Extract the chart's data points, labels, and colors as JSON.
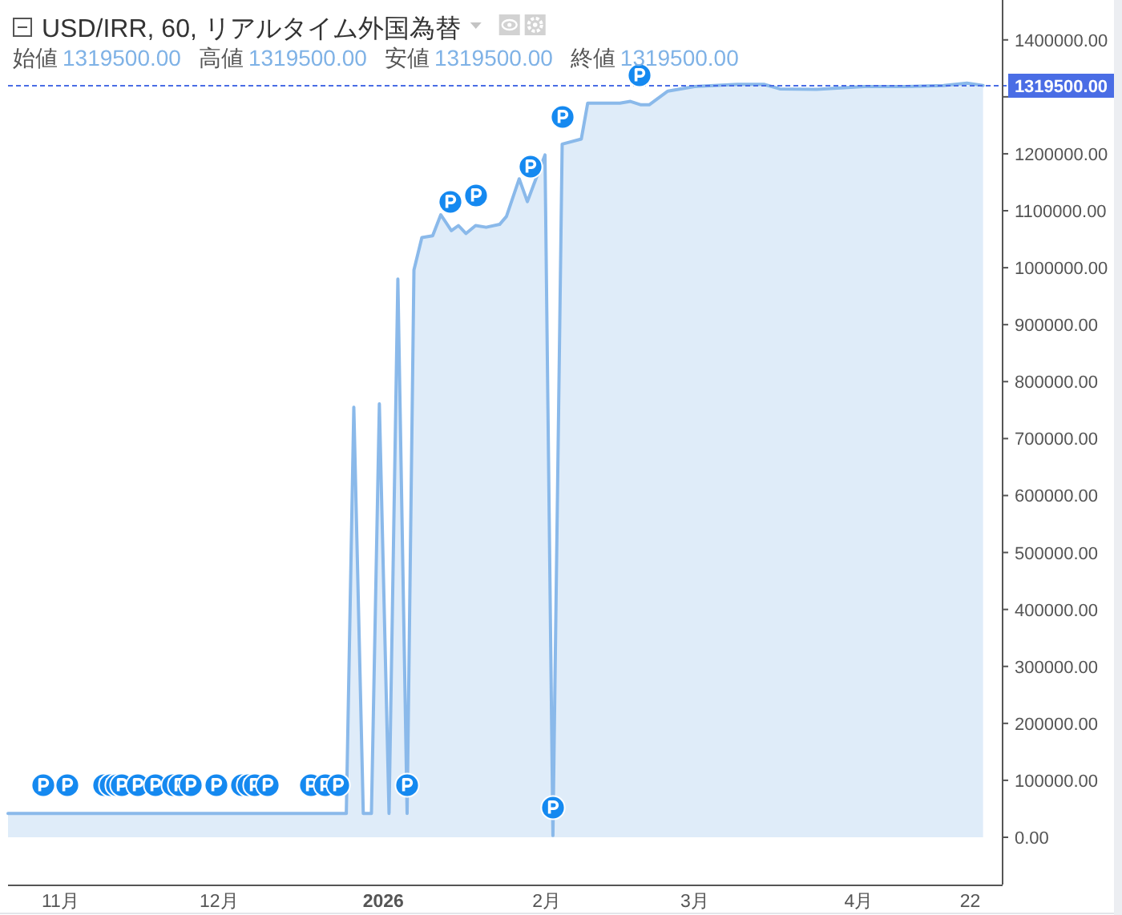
{
  "chart_data": {
    "type": "area",
    "title": "USD/IRR, 60, リアルタイム外国為替",
    "annotations": [
      "始値",
      "1319500.00",
      "高値",
      "1319500.00",
      "安値",
      "1319500.00",
      "終値",
      "1319500.00"
    ],
    "x": [
      "2025-10-22",
      "2025-12-25",
      "2025-12-26T10:00",
      "2025-12-28T05:00",
      "2025-12-29T18:00",
      "2025-12-31T06:00",
      "2026-01-02T02:00",
      "2026-01-03T18:00",
      "2026-01-05T12:00",
      "2026-01-06T19:00",
      "2026-01-08T07:00",
      "2026-01-10T08:00",
      "2026-01-11T21:00",
      "2026-01-13T21:00",
      "2026-01-15T05:00",
      "2026-01-16T15:00",
      "2026-01-18T11:00",
      "2026-01-20T11:00",
      "2026-01-23",
      "2026-01-24T07:00",
      "2026-01-26T17:00",
      "2026-01-28T06:00",
      "2026-01-29T09:00",
      "2026-01-31T14:00",
      "2026-02-02T02:00",
      "2026-02-03T20:00",
      "2026-02-07T11:00",
      "2026-02-08T16:00",
      "2026-02-14T18:00",
      "2026-02-16T18:00",
      "2026-02-18T18:00",
      "2026-02-20T07:00",
      "2026-02-23T20:00",
      "2026-02-28T21:00",
      "2026-03-09",
      "2026-03-14",
      "2026-03-17",
      "2026-03-24",
      "2026-04-02",
      "2026-04-10",
      "2026-04-17",
      "2026-04-21T10:00",
      "2026-04-24T11:00"
    ],
    "values": [
      42000,
      42000,
      755000,
      42000,
      42000,
      761000,
      42000,
      980000,
      42000,
      996000,
      1053000,
      1056000,
      1093000,
      1065000,
      1074000,
      1060000,
      1074000,
      1071000,
      1076000,
      1090000,
      1156000,
      1116000,
      1144000,
      1198000,
      3000,
      1217000,
      1226000,
      1289000,
      1289000,
      1292000,
      1286000,
      1286000,
      1310000,
      1318000,
      1322000,
      1322000,
      1314000,
      1313000,
      1318000,
      1318000,
      1320000,
      1324000,
      1320000
    ],
    "color": "#8ab9ea",
    "xlim": [
      "2025-10-22",
      "2026-04-28"
    ],
    "xticks": [
      {
        "value": "2025-11-01",
        "label": "11月"
      },
      {
        "value": "2025-12-01",
        "label": "12月"
      },
      {
        "value": "2026-01-01",
        "label": "2026"
      },
      {
        "value": "2026-02-01",
        "label": "2月"
      },
      {
        "value": "2026-03-01",
        "label": "3月"
      },
      {
        "value": "2026-04-01",
        "label": "4月"
      },
      {
        "value": "2026-04-22",
        "label": "22"
      }
    ],
    "ylim": [
      -83000,
      1470000
    ],
    "yticks": [
      {
        "value": 0,
        "label": "0.00"
      },
      {
        "value": 100000,
        "label": "100000.00"
      },
      {
        "value": 200000,
        "label": "200000.00"
      },
      {
        "value": 300000,
        "label": "300000.00"
      },
      {
        "value": 400000,
        "label": "400000.00"
      },
      {
        "value": 500000,
        "label": "500000.00"
      },
      {
        "value": 600000,
        "label": "600000.00"
      },
      {
        "value": 700000,
        "label": "700000.00"
      },
      {
        "value": 800000,
        "label": "800000.00"
      },
      {
        "value": 900000,
        "label": "900000.00"
      },
      {
        "value": 1000000,
        "label": "1000000.00"
      },
      {
        "value": 1100000,
        "label": "1100000.00"
      },
      {
        "value": 1200000,
        "label": "1200000.00"
      },
      {
        "value": 1300000,
        "label": null
      },
      {
        "value": 1400000,
        "label": "1400000.00"
      }
    ],
    "ref_lines": [
      {
        "axis": "y",
        "value": 1319500,
        "label": "1319500.00",
        "color": "#4a6de5",
        "line_style": "dashed"
      }
    ]
  }
}
